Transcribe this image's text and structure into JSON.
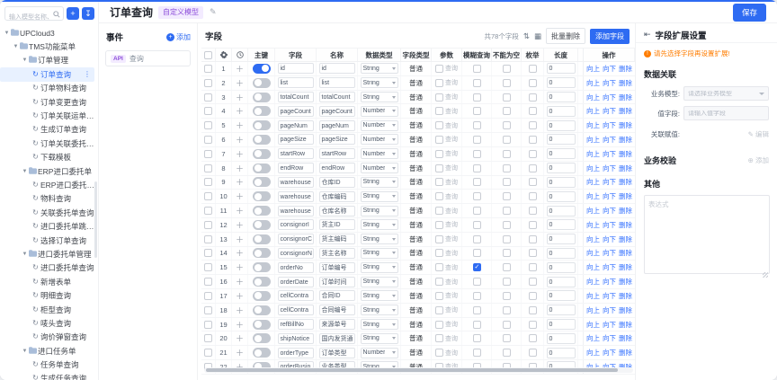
{
  "window": {
    "save_label": "保存"
  },
  "sidebar": {
    "search_placeholder": "输入模型名称、id搜索",
    "add_button_glyph": "+",
    "import_button_glyph": "↧",
    "tree": [
      {
        "label": "UPCloud3",
        "level": 1,
        "folder": true
      },
      {
        "label": "TMS功能菜单",
        "level": 2,
        "folder": true
      },
      {
        "label": "订单管理",
        "level": 3,
        "folder": true
      },
      {
        "label": "订单查询",
        "level": 4,
        "selected": true
      },
      {
        "label": "订单物料查询",
        "level": 4
      },
      {
        "label": "订单变更查询",
        "level": 4
      },
      {
        "label": "订单关联运单查询",
        "level": 4
      },
      {
        "label": "生成订单查询",
        "level": 4
      },
      {
        "label": "订单关联委托单查询",
        "level": 4
      },
      {
        "label": "下载模板",
        "level": 4
      },
      {
        "label": "ERP进口委托单",
        "level": 3,
        "folder": true
      },
      {
        "label": "ERP进口委托单查询",
        "level": 4
      },
      {
        "label": "物料查询",
        "level": 4
      },
      {
        "label": "关联委托单查询",
        "level": 4
      },
      {
        "label": "进口委托单跳转查询",
        "level": 4
      },
      {
        "label": "选择订单查询",
        "level": 4
      },
      {
        "label": "进口委托单管理",
        "level": 3,
        "folder": true
      },
      {
        "label": "进口委托单查询",
        "level": 4
      },
      {
        "label": "新增表单",
        "level": 4
      },
      {
        "label": "明细查询",
        "level": 4
      },
      {
        "label": "柜型查询",
        "level": 4
      },
      {
        "label": "唛头查询",
        "level": 4
      },
      {
        "label": "询价弹窗查询",
        "level": 4
      },
      {
        "label": "进口任务单",
        "level": 3,
        "folder": true
      },
      {
        "label": "任务单查询",
        "level": 4
      },
      {
        "label": "生成任务查询",
        "level": 4
      }
    ]
  },
  "header": {
    "title": "订单查询",
    "badge": "自定义模型"
  },
  "events": {
    "title": "事件",
    "add_label": "添加",
    "api_items": [
      {
        "tag": "API",
        "label": "查询"
      }
    ]
  },
  "fields": {
    "title": "字段",
    "count_label": "共78个字段",
    "batch_delete": "批量删除",
    "add_field": "添加字段",
    "columns": {
      "pk": "主键",
      "field": "字段",
      "name": "名称",
      "data_type": "数据类型",
      "field_type": "字段类型",
      "param": "参数",
      "fuzzy": "模糊查询",
      "not_null": "不能为空",
      "enum": "枚举",
      "length": "长度",
      "ops": "操作"
    },
    "param_option": "查询",
    "ops": {
      "up": "向上",
      "down": "向下",
      "del": "删除"
    },
    "rows": [
      {
        "i": 1,
        "primary": true,
        "field": "id",
        "name": "id",
        "type": "String",
        "ftype": "普通",
        "len": "0",
        "fuzzy": false
      },
      {
        "i": 2,
        "primary": false,
        "field": "list",
        "name": "list",
        "type": "String",
        "ftype": "普通",
        "len": "0",
        "fuzzy": false
      },
      {
        "i": 3,
        "primary": false,
        "field": "totalCount",
        "name": "totalCount",
        "type": "String",
        "ftype": "普通",
        "len": "0",
        "fuzzy": false
      },
      {
        "i": 4,
        "primary": false,
        "field": "pageCount",
        "name": "pageCount",
        "type": "Number",
        "ftype": "普通",
        "len": "0",
        "fuzzy": false
      },
      {
        "i": 5,
        "primary": false,
        "field": "pageNum",
        "name": "pageNum",
        "type": "Number",
        "ftype": "普通",
        "len": "0",
        "fuzzy": false
      },
      {
        "i": 6,
        "primary": false,
        "field": "pageSize",
        "name": "pageSize",
        "type": "Number",
        "ftype": "普通",
        "len": "0",
        "fuzzy": false
      },
      {
        "i": 7,
        "primary": false,
        "field": "startRow",
        "name": "startRow",
        "type": "Number",
        "ftype": "普通",
        "len": "0",
        "fuzzy": false
      },
      {
        "i": 8,
        "primary": false,
        "field": "endRow",
        "name": "endRow",
        "type": "Number",
        "ftype": "普通",
        "len": "0",
        "fuzzy": false
      },
      {
        "i": 9,
        "primary": false,
        "field": "warehouse",
        "name": "仓库ID",
        "type": "String",
        "ftype": "普通",
        "len": "0",
        "fuzzy": false
      },
      {
        "i": 10,
        "primary": false,
        "field": "warehouse",
        "name": "仓库编码",
        "type": "String",
        "ftype": "普通",
        "len": "0",
        "fuzzy": false
      },
      {
        "i": 11,
        "primary": false,
        "field": "warehouse",
        "name": "仓库名称",
        "type": "String",
        "ftype": "普通",
        "len": "0",
        "fuzzy": false
      },
      {
        "i": 12,
        "primary": false,
        "field": "consignorI",
        "name": "货主ID",
        "type": "String",
        "ftype": "普通",
        "len": "0",
        "fuzzy": false
      },
      {
        "i": 13,
        "primary": false,
        "field": "consignorC",
        "name": "货主编码",
        "type": "String",
        "ftype": "普通",
        "len": "0",
        "fuzzy": false
      },
      {
        "i": 14,
        "primary": false,
        "field": "consignorN",
        "name": "货主名称",
        "type": "String",
        "ftype": "普通",
        "len": "0",
        "fuzzy": false
      },
      {
        "i": 15,
        "primary": false,
        "field": "orderNo",
        "name": "订单编号",
        "type": "String",
        "ftype": "普通",
        "len": "0",
        "fuzzy": true
      },
      {
        "i": 16,
        "primary": false,
        "field": "orderDate",
        "name": "订单时间",
        "type": "String",
        "ftype": "普通",
        "len": "0",
        "fuzzy": false
      },
      {
        "i": 17,
        "primary": false,
        "field": "cellContra",
        "name": "合同ID",
        "type": "String",
        "ftype": "普通",
        "len": "0",
        "fuzzy": false
      },
      {
        "i": 18,
        "primary": false,
        "field": "cellContra",
        "name": "合同编号",
        "type": "String",
        "ftype": "普通",
        "len": "0",
        "fuzzy": false
      },
      {
        "i": 19,
        "primary": false,
        "field": "refBillNo",
        "name": "来源单号",
        "type": "String",
        "ftype": "普通",
        "len": "0",
        "fuzzy": false
      },
      {
        "i": 20,
        "primary": false,
        "field": "shipNotice",
        "name": "国内发货通",
        "type": "String",
        "ftype": "普通",
        "len": "0",
        "fuzzy": false
      },
      {
        "i": 21,
        "primary": false,
        "field": "orderType",
        "name": "订单类型",
        "type": "Number",
        "ftype": "普通",
        "len": "0",
        "fuzzy": false
      },
      {
        "i": 22,
        "primary": false,
        "field": "orderBusin",
        "name": "业务类型",
        "type": "String",
        "ftype": "普通",
        "len": "0",
        "fuzzy": false
      }
    ]
  },
  "ext_panel": {
    "title": "字段扩展设置",
    "warning": "请先选择字段再设置扩展!",
    "data_relation": {
      "title": "数据关联",
      "model_label": "业务模型:",
      "model_placeholder": "请选择业务模型",
      "value_label": "值字段:",
      "value_placeholder": "请输入值字段",
      "assign_label": "关联赋值:",
      "edit_label": "编辑"
    },
    "validation": {
      "title": "业务校验",
      "add_label": "添加"
    },
    "other": {
      "title": "其他",
      "expr_placeholder": "表达式"
    }
  },
  "colors": {
    "primary": "#2e6bf2",
    "badge_bg": "#f3ebff",
    "badge_text": "#8d4eda",
    "warning": "#ff7d00",
    "link": "#3370ff",
    "selected_bg": "#e8f1ff"
  }
}
